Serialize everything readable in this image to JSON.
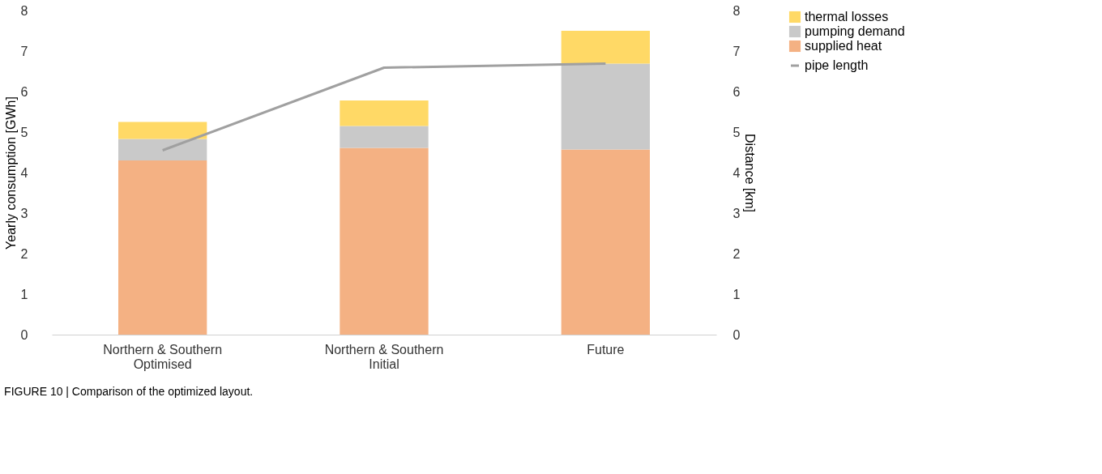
{
  "chart_data": {
    "type": "bar",
    "stacked": true,
    "categories": [
      "Northern & Southern Optimised",
      "Northern & Southern Initial",
      "Future"
    ],
    "ylabel": "Yearly consumption [GWh]",
    "y2label": "Distance [km]",
    "ylim": [
      0,
      8
    ],
    "yticks": [
      0,
      1,
      2,
      3,
      4,
      5,
      6,
      7,
      8
    ],
    "y2lim": [
      0,
      8
    ],
    "y2ticks": [
      0,
      1,
      2,
      3,
      4,
      5,
      6,
      7,
      8
    ],
    "series": [
      {
        "name": "supplied heat",
        "color": "#f4b183",
        "values": [
          4.3,
          4.61,
          4.57
        ]
      },
      {
        "name": "pumping demand",
        "color": "#c9c9c9",
        "values": [
          0.53,
          0.54,
          2.12
        ]
      },
      {
        "name": "thermal losses",
        "color": "#ffd966",
        "values": [
          0.42,
          0.63,
          0.81
        ]
      },
      {
        "name": "pipe length",
        "type": "line",
        "axis": "y2",
        "color": "#a0a0a0",
        "values": [
          4.55,
          6.59,
          6.69
        ]
      }
    ],
    "legend": "right",
    "grid": false,
    "marker": "none",
    "annotations": [
      "FIGURE 10 | Comparison of the optimized layout."
    ]
  }
}
